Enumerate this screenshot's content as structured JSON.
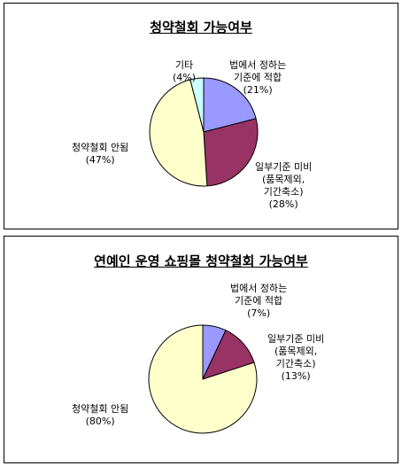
{
  "chart_data": [
    {
      "type": "pie",
      "title": "청약철회 가능여부",
      "slices": [
        {
          "lines": [
            "법에서 정하는",
            "기준에 적합",
            "(21%)"
          ],
          "value": 21,
          "color": "#9999ff"
        },
        {
          "lines": [
            "일부기준 미비",
            "(품목제외,",
            "기간축소)",
            "(28%)"
          ],
          "value": 28,
          "color": "#993366"
        },
        {
          "lines": [
            "청약철회 안됨",
            "(47%)"
          ],
          "value": 47,
          "color": "#ffffcc"
        },
        {
          "lines": [
            "기타",
            "(4%)"
          ],
          "value": 4,
          "color": "#ccffff"
        }
      ]
    },
    {
      "type": "pie",
      "title": "연예인 운영 쇼핑몰 청약철회 가능여부",
      "slices": [
        {
          "lines": [
            "법에서 정하는",
            "기준에 적합",
            "(7%)"
          ],
          "value": 7,
          "color": "#9999ff"
        },
        {
          "lines": [
            "일부기준 미비",
            "(품목제외,",
            "기간축소)",
            "(13%)"
          ],
          "value": 13,
          "color": "#993366"
        },
        {
          "lines": [
            "청약철회 안됨",
            "(80%)"
          ],
          "value": 80,
          "color": "#ffffcc"
        }
      ]
    }
  ]
}
